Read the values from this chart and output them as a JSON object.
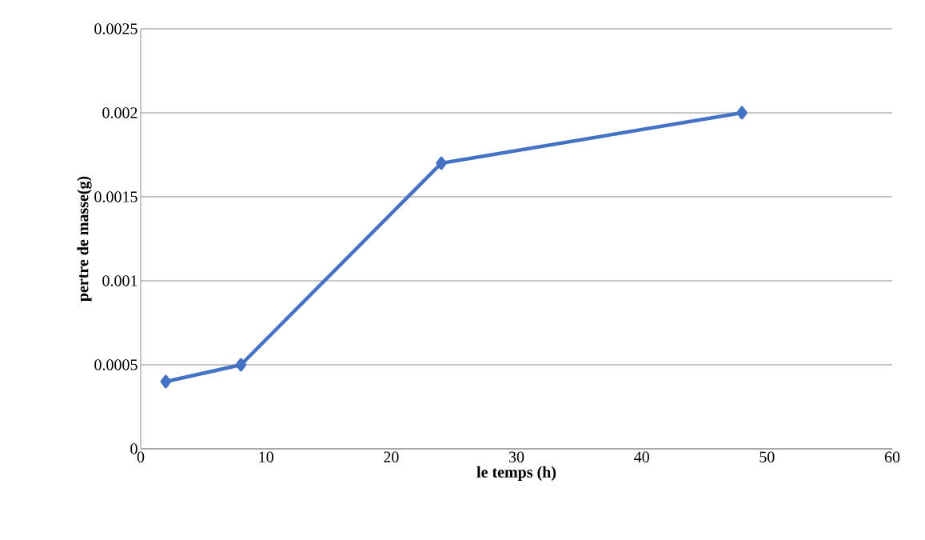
{
  "chart_data": {
    "type": "line",
    "xlabel": "le temps (h)",
    "ylabel": "pertre de masse(g)",
    "x": [
      2,
      8,
      24,
      48
    ],
    "series": [
      {
        "color": "#4472c4",
        "values": [
          0.0004,
          0.0005,
          0.0017,
          0.002
        ]
      }
    ],
    "xlim": [
      0,
      60
    ],
    "xticks": [
      0,
      10,
      20,
      30,
      40,
      50,
      60
    ],
    "ylim": [
      0,
      0.0025
    ],
    "yticks": [
      0,
      0.0005,
      0.001,
      0.0015,
      0.002,
      0.0025
    ],
    "grid": "y",
    "marker": "diamond",
    "line_style": "solid"
  }
}
